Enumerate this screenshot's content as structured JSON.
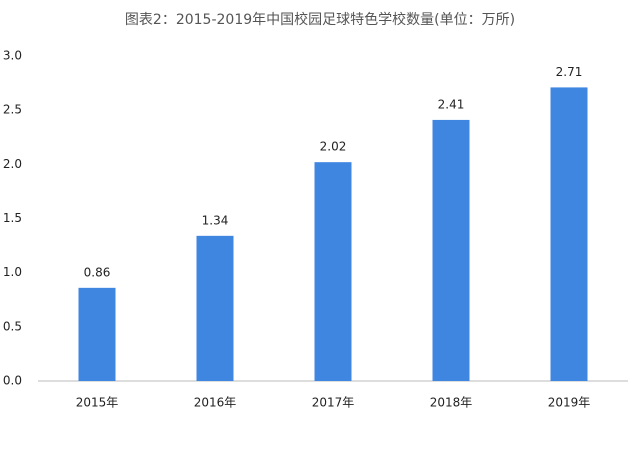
{
  "chart_data": {
    "type": "bar",
    "title": "图表2：2015-2019年中国校园足球特色学校数量(单位：万所)",
    "categories": [
      "2015年",
      "2016年",
      "2017年",
      "2018年",
      "2019年"
    ],
    "values": [
      0.86,
      1.34,
      2.02,
      2.41,
      2.71
    ],
    "color": "#3f86e0",
    "ylim": [
      0,
      3
    ],
    "yticks": [
      {
        "value": 0,
        "label": "0.0"
      },
      0.5,
      {
        "value": 1,
        "label": "1.0"
      },
      1.5,
      {
        "value": 2,
        "label": "2.0"
      },
      2.5,
      {
        "value": 3,
        "label": "3.0"
      }
    ],
    "grid": false
  }
}
